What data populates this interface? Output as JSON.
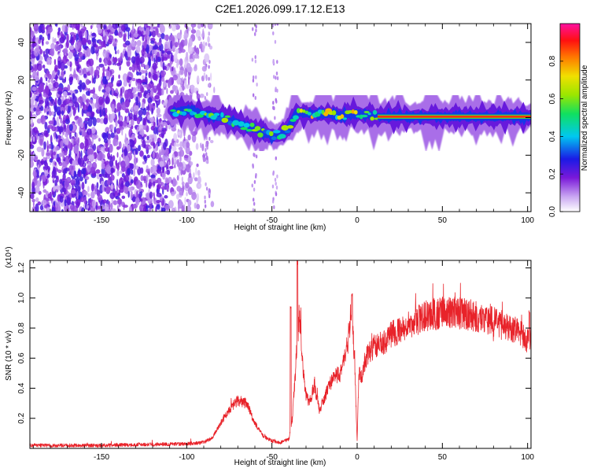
{
  "title": "C2E1.2026.099.17.12.E13",
  "chart_data": [
    {
      "type": "heatmap",
      "xlabel": "Height of straight line (km)",
      "ylabel": "Frequency (Hz)",
      "xlim": [
        -192,
        102
      ],
      "ylim": [
        -50,
        50
      ],
      "xticks": [
        -150,
        -100,
        -50,
        0,
        50,
        100
      ],
      "yticks": [
        -40,
        -20,
        0,
        20,
        40
      ],
      "grid": false,
      "colorbar": {
        "label": "Normalized spectral amplitude",
        "range": [
          0,
          1
        ],
        "ticks": [
          "0.0",
          "0.2",
          "0.4",
          "0.6",
          "0.8"
        ],
        "colormap": "rainbow (white, violet, blue, cyan, green, yellow, red, magenta)"
      },
      "description_segments": [
        {
          "x_range": [
            -192,
            -108
          ],
          "pattern": "scattered low-amplitude noise",
          "amplitude": 0.2
        },
        {
          "x_range": [
            -108,
            -38
          ],
          "pattern": "ridge drifting from 3 Hz to -10 Hz",
          "amplitude": 0.6
        },
        {
          "x_range": [
            -38,
            12
          ],
          "pattern": "ridge near 2 Hz",
          "amplitude": 0.75
        },
        {
          "x_range": [
            12,
            102
          ],
          "pattern": "narrow ridge near 0 Hz",
          "amplitude": 0.85
        }
      ],
      "ridge": {
        "x": [
          -108,
          -100,
          -90,
          -80,
          -70,
          -60,
          -55,
          -50,
          -45,
          -40,
          -35,
          -30,
          -20,
          -10,
          0,
          10,
          12,
          50,
          102
        ],
        "y": [
          3,
          4,
          2,
          0,
          -3,
          -6,
          -8,
          -10,
          -9,
          -5,
          3,
          2,
          2,
          1,
          2,
          1,
          0.5,
          0.5,
          0.5
        ]
      }
    },
    {
      "type": "line",
      "xlabel": "Height of straight line (km)",
      "ylabel": "SNR (10 * v/v)",
      "y_multiplier_label": "(x10⁴)",
      "xlim": [
        -192,
        102
      ],
      "ylim": [
        0,
        1.25
      ],
      "xticks": [
        -150,
        -100,
        -50,
        0,
        50,
        100
      ],
      "yticks": [
        0.2,
        0.4,
        0.6,
        0.8,
        1.0,
        1.2
      ],
      "ytick_labels": [
        "0.2",
        "0.4",
        "0.6",
        "0.8",
        "1.0",
        "1.2"
      ],
      "grid": false,
      "series": [
        {
          "name": "SNR",
          "color": "#e8232a",
          "envelope_x": [
            -192,
            -150,
            -100,
            -90,
            -85,
            -80,
            -75,
            -70,
            -65,
            -60,
            -55,
            -50,
            -45,
            -40,
            -38,
            -36,
            -34,
            -32,
            -30,
            -28,
            -25,
            -22,
            -20,
            -15,
            -10,
            -6,
            -3,
            -1,
            0,
            1,
            3,
            5,
            10,
            15,
            20,
            30,
            40,
            50,
            55,
            60,
            70,
            80,
            90,
            95,
            100,
            102
          ],
          "envelope_y": [
            0.02,
            0.02,
            0.03,
            0.04,
            0.07,
            0.17,
            0.26,
            0.32,
            0.3,
            0.17,
            0.08,
            0.05,
            0.04,
            0.06,
            0.2,
            0.55,
            0.9,
            0.55,
            0.35,
            0.3,
            0.42,
            0.25,
            0.32,
            0.45,
            0.5,
            0.65,
            0.95,
            0.4,
            0.05,
            0.48,
            0.5,
            0.6,
            0.68,
            0.7,
            0.76,
            0.82,
            0.88,
            0.9,
            0.91,
            0.9,
            0.88,
            0.84,
            0.8,
            0.77,
            0.72,
            0.74
          ],
          "peaks": [
            {
              "x": -35,
              "y": 1.25
            },
            {
              "x": -39,
              "y": 0.95
            },
            {
              "x": -3,
              "y": 1.03
            },
            {
              "x": 101,
              "y": 0.92
            }
          ]
        }
      ]
    }
  ]
}
